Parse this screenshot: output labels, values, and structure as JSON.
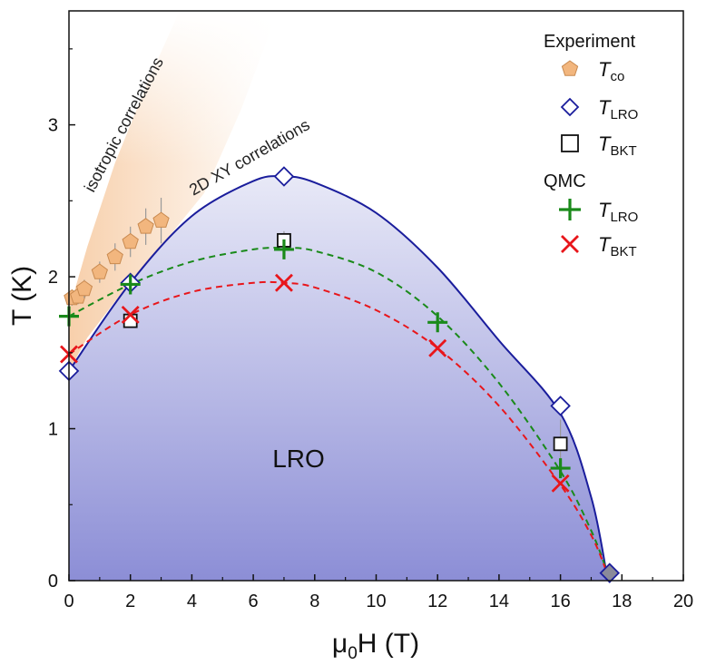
{
  "chart_data": {
    "type": "scatter",
    "xlabel_main": "μ",
    "xlabel_sub": "0",
    "xlabel_rest": "H (T)",
    "ylabel": "T (K)",
    "xlim": [
      0,
      20
    ],
    "ylim": [
      0,
      3.75
    ],
    "xticks": [
      0,
      2,
      4,
      6,
      8,
      10,
      12,
      14,
      16,
      18,
      20
    ],
    "yticks": [
      0,
      1,
      2,
      3
    ],
    "region_label": "LRO",
    "band_labels": [
      "isotropic correlations",
      "2D XY correlations"
    ],
    "colors": {
      "lro_fill_top": "#e8e9f7",
      "lro_fill_bottom": "#8c8ed6",
      "lro_line": "#1a1d9c",
      "pentagon": "#f2b67e",
      "pentagon_edge": "#c98a50",
      "diamond": "#1a1d9c",
      "square": "#111111",
      "green": "#1a8a1a",
      "red": "#e8161b",
      "band": "#f6c79c"
    },
    "lro_boundary": {
      "x": [
        0,
        2,
        4,
        6,
        7,
        8,
        10,
        12,
        14,
        16,
        17,
        17.5
      ],
      "y": [
        1.38,
        1.96,
        2.4,
        2.63,
        2.66,
        2.62,
        2.42,
        2.06,
        1.58,
        1.1,
        0.55,
        0.05
      ]
    },
    "qmc_lro_curve": {
      "x": [
        0,
        2,
        4,
        6,
        7,
        8,
        10,
        12,
        14,
        16,
        17,
        17.5
      ],
      "y": [
        1.74,
        1.95,
        2.1,
        2.18,
        2.19,
        2.17,
        2.03,
        1.74,
        1.3,
        0.72,
        0.33,
        0.07
      ]
    },
    "qmc_bkt_curve": {
      "x": [
        0,
        2,
        4,
        6,
        7,
        8,
        10,
        12,
        14,
        16,
        17,
        17.5
      ],
      "y": [
        1.49,
        1.75,
        1.9,
        1.96,
        1.96,
        1.93,
        1.78,
        1.53,
        1.15,
        0.63,
        0.3,
        0.06
      ]
    },
    "legend": {
      "experiment_title": "Experiment",
      "qmc_title": "QMC",
      "entries": [
        {
          "marker": "pentagon",
          "label_main": "T",
          "label_sub": "co"
        },
        {
          "marker": "diamond",
          "label_main": "T",
          "label_sub": "LRO"
        },
        {
          "marker": "square",
          "label_main": "T",
          "label_sub": "BKT"
        },
        {
          "marker": "plus",
          "label_main": "T",
          "label_sub": "LRO"
        },
        {
          "marker": "cross",
          "label_main": "T",
          "label_sub": "BKT"
        }
      ]
    },
    "series": [
      {
        "name": "Tco (Experiment)",
        "marker": "pentagon",
        "x": [
          0.1,
          0.3,
          0.5,
          1.0,
          1.5,
          2.0,
          2.5,
          3.0
        ],
        "y": [
          1.86,
          1.87,
          1.92,
          2.03,
          2.13,
          2.23,
          2.33,
          2.37
        ],
        "err": [
          0.05,
          0.05,
          0.06,
          0.07,
          0.09,
          0.1,
          0.12,
          0.15
        ]
      },
      {
        "name": "TLRO (Experiment)",
        "marker": "diamond",
        "x": [
          0,
          2,
          7,
          16,
          17.6
        ],
        "y": [
          1.38,
          1.96,
          2.66,
          1.15,
          0.05
        ]
      },
      {
        "name": "TBKT (Experiment)",
        "marker": "square",
        "x": [
          2,
          7,
          16
        ],
        "y": [
          1.71,
          2.24,
          0.9
        ],
        "err": [
          0.04,
          0.06,
          0.16
        ]
      },
      {
        "name": "TLRO (QMC)",
        "marker": "plus",
        "x": [
          0,
          2,
          7,
          12,
          16
        ],
        "y": [
          1.74,
          1.95,
          2.18,
          1.7,
          0.74
        ]
      },
      {
        "name": "TBKT (QMC)",
        "marker": "cross",
        "x": [
          0,
          2,
          7,
          12,
          16
        ],
        "y": [
          1.49,
          1.75,
          1.96,
          1.53,
          0.64
        ]
      }
    ]
  }
}
